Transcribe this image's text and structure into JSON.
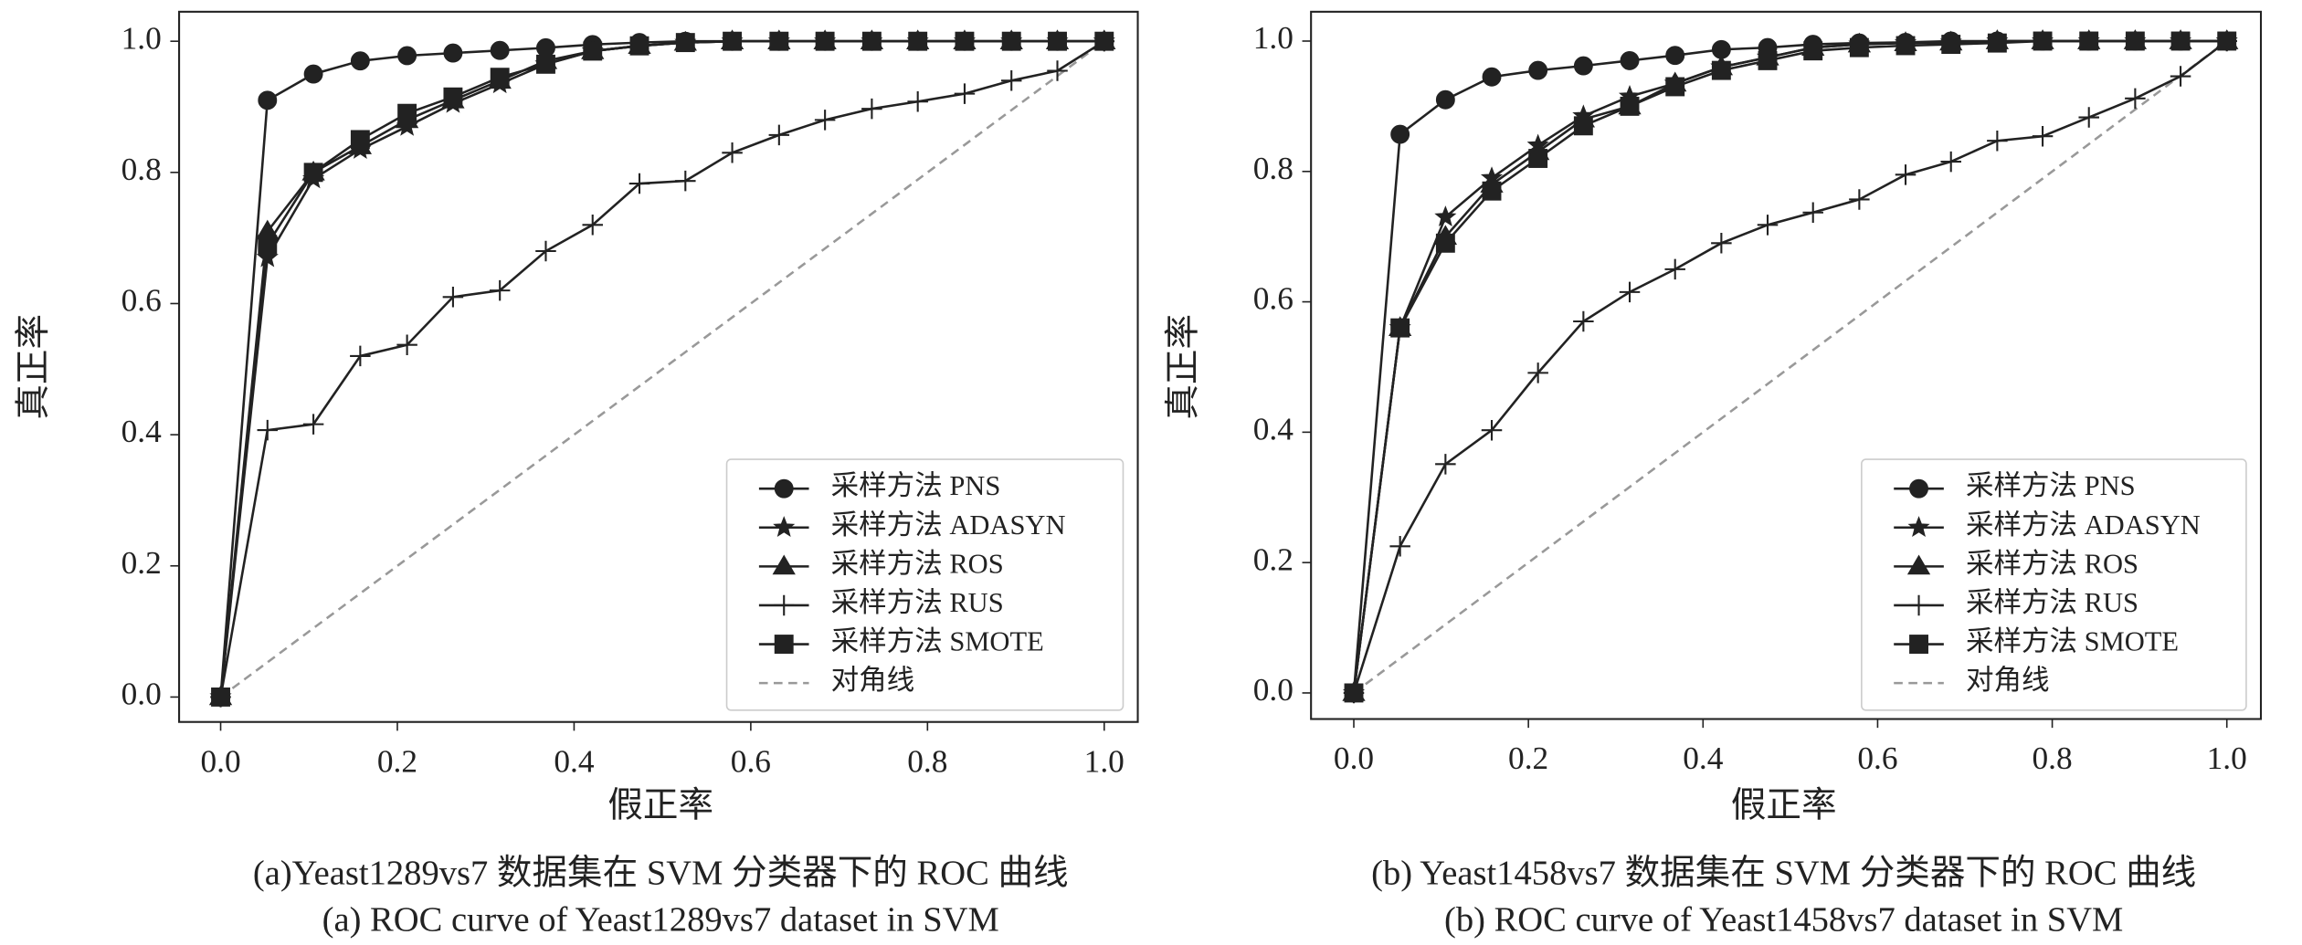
{
  "chart_data": [
    {
      "type": "line",
      "x_label": "假正率",
      "y_label": "真正率",
      "caption": [
        "(a)Yeast1289vs7 数据集在 SVM 分类器下的 ROC 曲线",
        "(a) ROC curve of Yeast1289vs7 dataset in SVM"
      ],
      "x": [
        0,
        0.053,
        0.105,
        0.158,
        0.211,
        0.263,
        0.316,
        0.368,
        0.421,
        0.474,
        0.526,
        0.579,
        0.632,
        0.684,
        0.737,
        0.789,
        0.842,
        0.895,
        0.947,
        1
      ],
      "series": [
        {
          "name": "采样方法 PNS",
          "color": "#222222",
          "marker": "circle",
          "values": [
            0,
            0.91,
            0.95,
            0.97,
            0.978,
            0.982,
            0.986,
            0.99,
            0.995,
            0.998,
            1,
            1,
            1,
            1,
            1,
            1,
            1,
            1,
            1,
            1
          ]
        },
        {
          "name": "采样方法 ADASYN",
          "color": "#222222",
          "marker": "star",
          "values": [
            0,
            0.67,
            0.79,
            0.835,
            0.87,
            0.905,
            0.935,
            0.965,
            0.985,
            0.993,
            0.998,
            1,
            1,
            1,
            1,
            1,
            1,
            1,
            1,
            1
          ]
        },
        {
          "name": "采样方法 ROS",
          "color": "#222222",
          "marker": "triangle",
          "values": [
            0,
            0.71,
            0.8,
            0.84,
            0.88,
            0.91,
            0.94,
            0.97,
            0.985,
            0.993,
            0.998,
            1,
            1,
            1,
            1,
            1,
            1,
            1,
            1,
            1
          ]
        },
        {
          "name": "采样方法 RUS",
          "color": "#222222",
          "marker": "plus",
          "values": [
            0,
            0.407,
            0.416,
            0.52,
            0.537,
            0.61,
            0.62,
            0.68,
            0.72,
            0.783,
            0.787,
            0.83,
            0.857,
            0.88,
            0.897,
            0.908,
            0.92,
            0.94,
            0.955,
            1
          ]
        },
        {
          "name": "采样方法 SMOTE",
          "color": "#222222",
          "marker": "square",
          "values": [
            0,
            0.69,
            0.8,
            0.85,
            0.89,
            0.915,
            0.945,
            0.965,
            0.985,
            0.993,
            0.998,
            1,
            1,
            1,
            1,
            1,
            1,
            1,
            1,
            1
          ]
        },
        {
          "name": "对角线",
          "color": "#999999",
          "dashed": true,
          "x": [
            0,
            1
          ],
          "values": [
            0,
            1
          ]
        }
      ],
      "xlim": [
        -0.047,
        1.038
      ],
      "ylim": [
        -0.038,
        1.045
      ],
      "xticks": [
        {
          "value": 0,
          "label": "0.0"
        },
        0.2,
        0.4,
        0.6,
        0.8,
        {
          "value": 1,
          "label": "1.0"
        }
      ],
      "yticks": [
        {
          "value": 0,
          "label": "0.0"
        },
        0.2,
        0.4,
        0.6,
        0.8,
        {
          "value": 1,
          "label": "1.0"
        }
      ],
      "legend": "lower right"
    },
    {
      "type": "line",
      "x_label": "假正率",
      "y_label": "真正率",
      "caption": [
        "(b) Yeast1458vs7 数据集在 SVM 分类器下的 ROC 曲线",
        "(b) ROC curve of Yeast1458vs7 dataset in SVM"
      ],
      "x": [
        0,
        0.053,
        0.105,
        0.158,
        0.211,
        0.263,
        0.316,
        0.368,
        0.421,
        0.474,
        0.526,
        0.579,
        0.632,
        0.684,
        0.737,
        0.789,
        0.842,
        0.895,
        0.947,
        1
      ],
      "series": [
        {
          "name": "采样方法 PNS",
          "color": "#222222",
          "marker": "circle",
          "values": [
            0,
            0.857,
            0.91,
            0.945,
            0.955,
            0.962,
            0.97,
            0.978,
            0.987,
            0.99,
            0.995,
            0.997,
            0.998,
            1,
            1,
            1,
            1,
            1,
            1,
            1
          ]
        },
        {
          "name": "采样方法 ADASYN",
          "color": "#222222",
          "marker": "star",
          "values": [
            0,
            0.56,
            0.73,
            0.79,
            0.84,
            0.885,
            0.915,
            0.935,
            0.96,
            0.975,
            0.99,
            0.995,
            0.997,
            0.998,
            1,
            1,
            1,
            1,
            1,
            1
          ]
        },
        {
          "name": "采样方法 ROS",
          "color": "#222222",
          "marker": "triangle",
          "values": [
            0,
            0.56,
            0.7,
            0.78,
            0.83,
            0.88,
            0.9,
            0.935,
            0.96,
            0.975,
            0.99,
            0.995,
            0.997,
            0.998,
            1,
            1,
            1,
            1,
            1,
            1
          ]
        },
        {
          "name": "采样方法 RUS",
          "color": "#222222",
          "marker": "plus",
          "values": [
            0,
            0.225,
            0.351,
            0.403,
            0.491,
            0.57,
            0.615,
            0.65,
            0.69,
            0.718,
            0.737,
            0.757,
            0.795,
            0.815,
            0.847,
            0.854,
            0.883,
            0.912,
            0.946,
            1
          ]
        },
        {
          "name": "采样方法 SMOTE",
          "color": "#222222",
          "marker": "square",
          "values": [
            0,
            0.56,
            0.69,
            0.77,
            0.82,
            0.87,
            0.9,
            0.93,
            0.955,
            0.97,
            0.985,
            0.99,
            0.993,
            0.995,
            0.997,
            1,
            1,
            1,
            1,
            1
          ]
        },
        {
          "name": "对角线",
          "color": "#999999",
          "dashed": true,
          "x": [
            0,
            1
          ],
          "values": [
            0,
            1
          ]
        }
      ],
      "xlim": [
        -0.049,
        1.039
      ],
      "ylim": [
        -0.04,
        1.045
      ],
      "xticks": [
        {
          "value": 0,
          "label": "0.0"
        },
        0.2,
        0.4,
        0.6,
        0.8,
        {
          "value": 1,
          "label": "1.0"
        }
      ],
      "yticks": [
        {
          "value": 0,
          "label": "0.0"
        },
        0.2,
        0.4,
        0.6,
        0.8,
        {
          "value": 1,
          "label": "1.0"
        }
      ],
      "legend": "lower right"
    }
  ]
}
